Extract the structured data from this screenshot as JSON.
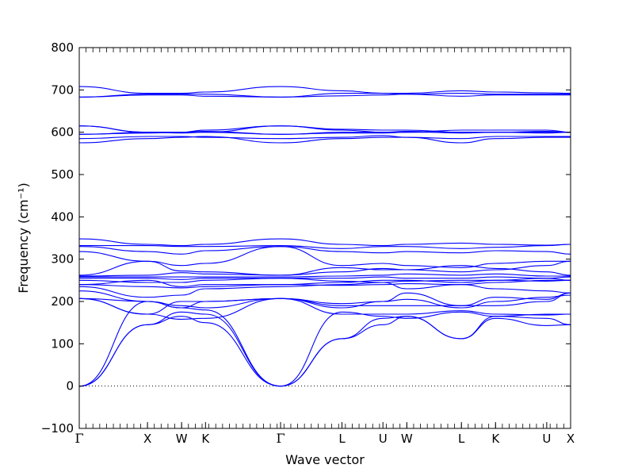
{
  "chart_data": {
    "type": "line",
    "title": "",
    "xlabel": "Wave vector",
    "ylabel": "Frequency (cm⁻¹)",
    "ylim": [
      -100,
      800
    ],
    "yticks": [
      -100,
      0,
      100,
      200,
      300,
      400,
      500,
      600,
      700,
      800
    ],
    "xlim": [
      0,
      7.2
    ],
    "path_points": [
      {
        "label": "Γ",
        "x": 0.0
      },
      {
        "label": "X",
        "x": 1.0
      },
      {
        "label": "W",
        "x": 1.5
      },
      {
        "label": "K",
        "x": 1.85
      },
      {
        "label": "Γ",
        "x": 2.95
      },
      {
        "label": "L",
        "x": 3.85
      },
      {
        "label": "U",
        "x": 4.45
      },
      {
        "label": "W",
        "x": 4.8
      },
      {
        "label": "L",
        "x": 5.6
      },
      {
        "label": "K",
        "x": 6.1
      },
      {
        "label": "U",
        "x": 6.85
      },
      {
        "label": "X",
        "x": 7.2
      }
    ],
    "zero_line": 0,
    "grid": false,
    "series_color": "#0000ff",
    "series": [
      {
        "values": [
          0,
          145,
          165,
          150,
          0,
          112,
          145,
          165,
          112,
          160,
          143,
          145
        ]
      },
      {
        "values": [
          0,
          145,
          175,
          170,
          0,
          112,
          160,
          165,
          112,
          165,
          160,
          145
        ]
      },
      {
        "values": [
          0,
          200,
          185,
          180,
          0,
          175,
          165,
          160,
          175,
          165,
          170,
          170
        ]
      },
      {
        "values": [
          207,
          170,
          158,
          160,
          207,
          170,
          170,
          170,
          178,
          170,
          168,
          170
        ]
      },
      {
        "values": [
          207,
          200,
          185,
          200,
          207,
          185,
          200,
          205,
          185,
          200,
          210,
          215
        ]
      },
      {
        "values": [
          207,
          170,
          200,
          200,
          207,
          195,
          200,
          220,
          190,
          210,
          205,
          220
        ]
      },
      {
        "values": [
          225,
          200,
          190,
          185,
          207,
          190,
          190,
          190,
          190,
          190,
          200,
          220
        ]
      },
      {
        "values": [
          235,
          210,
          215,
          230,
          235,
          240,
          245,
          230,
          240,
          230,
          225,
          220
        ]
      },
      {
        "values": [
          240,
          235,
          232,
          235,
          240,
          238,
          240,
          242,
          240,
          245,
          250,
          250
        ]
      },
      {
        "values": [
          240,
          250,
          235,
          240,
          240,
          245,
          250,
          250,
          245,
          250,
          255,
          250
        ]
      },
      {
        "values": [
          250,
          245,
          245,
          250,
          255,
          248,
          245,
          248,
          250,
          250,
          248,
          250
        ]
      },
      {
        "values": [
          255,
          255,
          252,
          255,
          255,
          255,
          258,
          255,
          255,
          258,
          255,
          258
        ]
      },
      {
        "values": [
          258,
          258,
          258,
          258,
          258,
          260,
          262,
          265,
          262,
          265,
          260,
          260
        ]
      },
      {
        "values": [
          260,
          262,
          268,
          265,
          262,
          270,
          278,
          275,
          270,
          275,
          285,
          295
        ]
      },
      {
        "values": [
          262,
          295,
          285,
          290,
          330,
          285,
          290,
          285,
          280,
          290,
          295,
          295
        ]
      },
      {
        "values": [
          318,
          295,
          272,
          270,
          262,
          280,
          275,
          275,
          285,
          278,
          270,
          262
        ]
      },
      {
        "values": [
          330,
          318,
          312,
          320,
          330,
          318,
          315,
          318,
          315,
          320,
          318,
          312
        ]
      },
      {
        "values": [
          332,
          332,
          330,
          330,
          332,
          325,
          330,
          330,
          325,
          328,
          332,
          335
        ]
      },
      {
        "values": [
          348,
          335,
          332,
          335,
          348,
          335,
          332,
          335,
          338,
          335,
          333,
          335
        ]
      },
      {
        "values": [
          575,
          585,
          588,
          590,
          575,
          585,
          588,
          588,
          575,
          585,
          588,
          588
        ]
      },
      {
        "values": [
          585,
          590,
          590,
          588,
          585,
          588,
          592,
          588,
          585,
          590,
          590,
          590
        ]
      },
      {
        "values": [
          595,
          598,
          600,
          600,
          595,
          598,
          598,
          600,
          600,
          600,
          598,
          600
        ]
      },
      {
        "values": [
          595,
          600,
          600,
          602,
          595,
          600,
          600,
          602,
          598,
          600,
          602,
          600
        ]
      },
      {
        "values": [
          615,
          600,
          600,
          605,
          615,
          605,
          600,
          600,
          605,
          605,
          605,
          600
        ]
      },
      {
        "values": [
          615,
          600,
          598,
          600,
          615,
          607,
          605,
          605,
          600,
          600,
          600,
          600
        ]
      },
      {
        "values": [
          683,
          688,
          688,
          685,
          683,
          686,
          688,
          690,
          685,
          688,
          688,
          688
        ]
      },
      {
        "values": [
          683,
          690,
          690,
          690,
          683,
          692,
          692,
          690,
          692,
          690,
          690,
          690
        ]
      },
      {
        "values": [
          708,
          692,
          692,
          695,
          708,
          698,
          692,
          692,
          698,
          695,
          693,
          692
        ]
      }
    ]
  }
}
